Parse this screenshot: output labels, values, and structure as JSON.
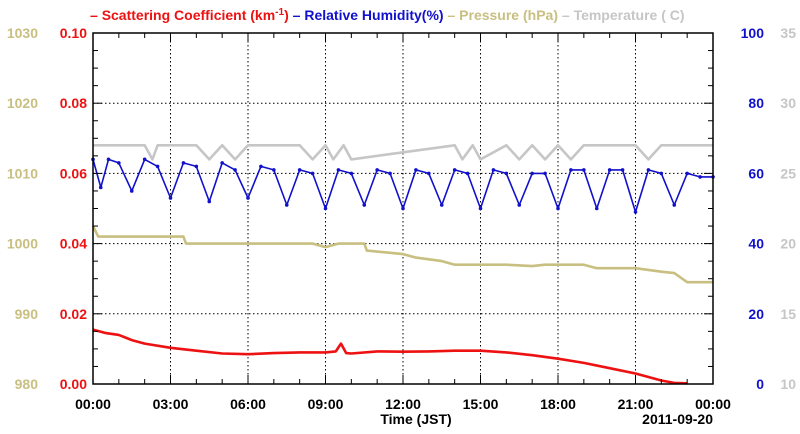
{
  "colors": {
    "scattering": "#ee1111",
    "humidity": "#1111cc",
    "pressure": "#c8bf80",
    "temperature": "#c6c6c6"
  },
  "chart_data": {
    "type": "line",
    "xlabel": "Time (JST)",
    "date_label": "2011-09-20",
    "x_ticks": [
      "00:00",
      "03:00",
      "06:00",
      "09:00",
      "12:00",
      "15:00",
      "18:00",
      "21:00",
      "00:00"
    ],
    "x_range_hours": [
      0,
      24
    ],
    "grid": true,
    "legend_position": "top",
    "axes": {
      "scattering": {
        "range": [
          0,
          0.1
        ],
        "ticks": [
          "0.00",
          "0.02",
          "0.04",
          "0.06",
          "0.08",
          "0.10"
        ]
      },
      "humidity": {
        "range": [
          0,
          100
        ],
        "ticks": [
          "0",
          "20",
          "40",
          "60",
          "80",
          "100"
        ]
      },
      "pressure": {
        "range": [
          980,
          1030
        ],
        "ticks": [
          "980",
          "990",
          "1000",
          "1010",
          "1020",
          "1030"
        ]
      },
      "temperature": {
        "range": [
          10,
          35
        ],
        "ticks": [
          "10",
          "15",
          "20",
          "25",
          "30",
          "35"
        ]
      }
    },
    "series": [
      {
        "key": "scattering",
        "legend_prefix": "Scattering Coefficient (km",
        "legend_sup": "-1",
        "legend_suffix": ")",
        "axis": "scattering",
        "hours": [
          0,
          0.5,
          1,
          1.5,
          2,
          3,
          4,
          5,
          6,
          7,
          8,
          9,
          9.4,
          9.6,
          9.8,
          10,
          11,
          12,
          13,
          14,
          15,
          16,
          17,
          18,
          19,
          20,
          21,
          21.5,
          22,
          22.5,
          23
        ],
        "values": [
          0.0155,
          0.0145,
          0.014,
          0.0125,
          0.0115,
          0.0103,
          0.0095,
          0.0087,
          0.0085,
          0.0088,
          0.009,
          0.009,
          0.0093,
          0.0115,
          0.0088,
          0.0087,
          0.0093,
          0.0092,
          0.0093,
          0.0095,
          0.0095,
          0.009,
          0.0082,
          0.0072,
          0.006,
          0.0045,
          0.003,
          0.002,
          0.001,
          0.0003,
          0.0002
        ]
      },
      {
        "key": "humidity",
        "legend": "Relative Humidity(%)",
        "axis": "humidity",
        "hours": [
          0,
          0.3,
          0.6,
          1,
          1.5,
          2,
          2.5,
          3,
          3.5,
          4,
          4.5,
          5,
          5.5,
          6,
          6.5,
          7,
          7.5,
          8,
          8.5,
          9,
          9.5,
          10,
          10.5,
          11,
          11.5,
          12,
          12.5,
          13,
          13.5,
          14,
          14.5,
          15,
          15.5,
          16,
          16.5,
          17,
          17.5,
          18,
          18.5,
          19,
          19.5,
          20,
          20.5,
          21,
          21.5,
          22,
          22.5,
          23,
          23.5,
          24
        ],
        "values": [
          64,
          56,
          64,
          63,
          55,
          64,
          62,
          53,
          63,
          62,
          52,
          63,
          61,
          53,
          62,
          61,
          51,
          61,
          60,
          50,
          61,
          60,
          51,
          61,
          60,
          50,
          61,
          60,
          51,
          61,
          60,
          50,
          61,
          60,
          51,
          60,
          60,
          50,
          61,
          61,
          50,
          61,
          61,
          49,
          61,
          60,
          51,
          60,
          59,
          59
        ]
      },
      {
        "key": "pressure",
        "legend": "Pressure (hPa)",
        "axis": "pressure",
        "hours": [
          0,
          0.2,
          3.5,
          3.6,
          8.5,
          9,
          9.5,
          10.5,
          10.6,
          12,
          12.5,
          13.5,
          14,
          16,
          17,
          17.5,
          19,
          19.5,
          21,
          22,
          22.5,
          23,
          24
        ],
        "values": [
          1002.5,
          1001,
          1001,
          1000,
          1000,
          999.5,
          1000,
          1000,
          999,
          998.5,
          998,
          997.5,
          997,
          997,
          996.8,
          997,
          997,
          996.5,
          996.5,
          996,
          995.8,
          994.5,
          994.5
        ]
      },
      {
        "key": "temperature",
        "legend_prefix": "Temperature (",
        "legend_suffix": "C)",
        "axis": "temperature",
        "hours": [
          0,
          2,
          2.3,
          2.5,
          4,
          4.5,
          5,
          5.5,
          6,
          8,
          8.5,
          9,
          9.3,
          9.7,
          10,
          14,
          14.3,
          14.7,
          15,
          16,
          16.5,
          17,
          17.5,
          18,
          18.5,
          19,
          20,
          21,
          21.5,
          22,
          24
        ],
        "values": [
          27,
          27,
          26,
          27,
          27,
          26,
          27,
          26,
          27,
          27,
          26,
          27,
          26,
          27,
          26,
          27,
          26,
          27,
          26,
          27,
          26,
          27,
          26,
          27,
          26,
          27,
          27,
          27,
          26,
          27,
          27
        ]
      }
    ]
  }
}
